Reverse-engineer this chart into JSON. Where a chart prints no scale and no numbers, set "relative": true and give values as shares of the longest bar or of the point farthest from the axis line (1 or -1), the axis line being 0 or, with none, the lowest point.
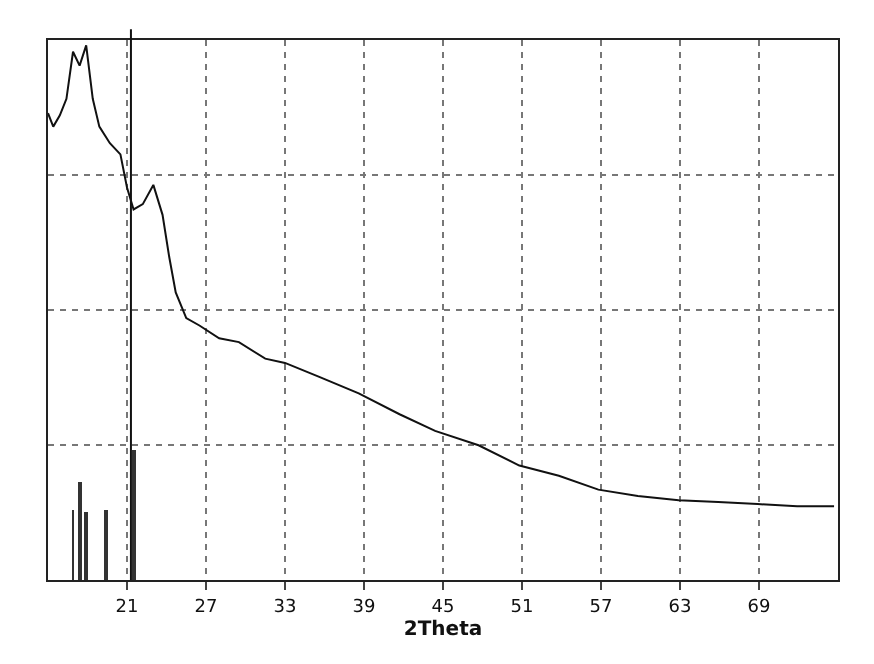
{
  "chart_data": {
    "type": "line",
    "xlabel": "2Theta",
    "relative": true,
    "grid": true,
    "xlim": [
      15,
      75
    ],
    "xticks": [
      21,
      27,
      33,
      {
        "value": 39,
        "label": "39"
      },
      {
        "value": 45,
        "label": "45"
      },
      {
        "value": 51,
        "label": "51"
      },
      57,
      63,
      69
    ],
    "series": [
      {
        "color": "#111111",
        "x": [
          15.0,
          15.4,
          15.9,
          16.4,
          16.9,
          17.4,
          17.9,
          18.4,
          18.9,
          19.7,
          20.5,
          21.0,
          21.5,
          22.2,
          23.0,
          23.7,
          24.2,
          24.7,
          25.5,
          26.5,
          28.0,
          29.5,
          31.5,
          33.0,
          35.6,
          38.6,
          41.7,
          44.4,
          47.7,
          50.8,
          53.8,
          56.8,
          59.8,
          62.9,
          65.9,
          68.9,
          71.9,
          74.7
        ],
        "values": [
          0.873,
          0.848,
          0.869,
          0.9,
          0.988,
          0.962,
          1,
          0.9,
          0.848,
          0.817,
          0.796,
          0.734,
          0.693,
          0.703,
          0.739,
          0.683,
          0.605,
          0.538,
          0.49,
          0.476,
          0.452,
          0.445,
          0.414,
          0.406,
          0.38,
          0.349,
          0.31,
          0.279,
          0.252,
          0.214,
          0.195,
          0.169,
          0.157,
          0.149,
          0.146,
          0.142,
          0.138,
          0.138
        ]
      },
      {
        "type": "bar",
        "color": "#333333",
        "x": [
          16.9,
          17.4,
          17.9,
          19.4,
          21.5
        ],
        "values": [
          0.13,
          0.184,
          0.127,
          0.13,
          0.245
        ]
      }
    ],
    "ref_lines": [
      {
        "axis": "x",
        "value": 21.3,
        "color": "#111111"
      }
    ]
  }
}
